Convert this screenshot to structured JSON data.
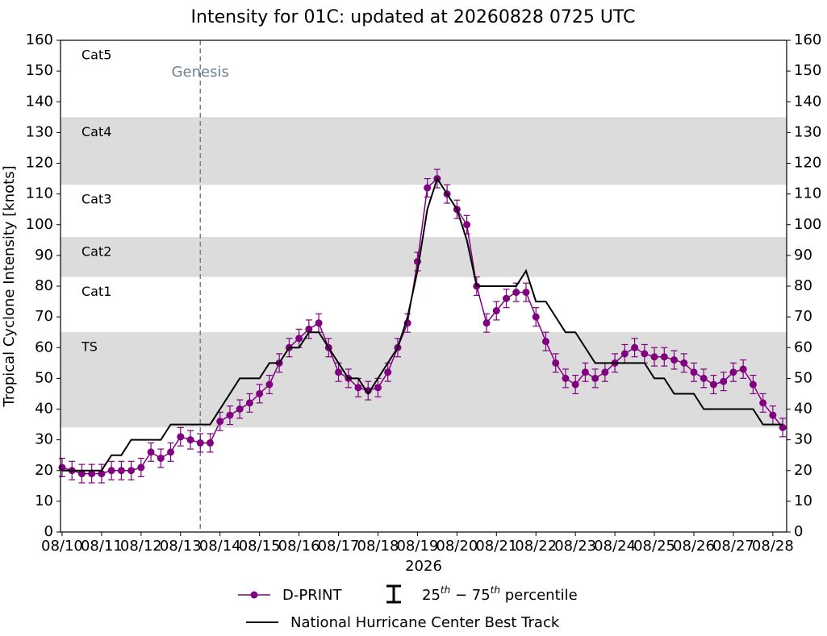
{
  "chart_data": {
    "type": "line",
    "title": "Intensity for 01C: updated at 20260828 0725 UTC",
    "ylabel": "Tropical Cyclone Intensity [knots]",
    "xlabel": "2026",
    "xlim": [
      -0.04,
      18.35
    ],
    "xticks": [
      {
        "value": 0,
        "label": "08/10"
      },
      {
        "value": 1,
        "label": "08/11"
      },
      {
        "value": 2,
        "label": "08/12"
      },
      {
        "value": 3,
        "label": "08/13"
      },
      {
        "value": 4,
        "label": "08/14"
      },
      {
        "value": 5,
        "label": "08/15"
      },
      {
        "value": 6,
        "label": "08/16"
      },
      {
        "value": 7,
        "label": "08/17"
      },
      {
        "value": 8,
        "label": "08/18"
      },
      {
        "value": 9,
        "label": "08/19"
      },
      {
        "value": 10,
        "label": "08/20"
      },
      {
        "value": 11,
        "label": "08/21"
      },
      {
        "value": 12,
        "label": "08/22"
      },
      {
        "value": 13,
        "label": "08/23"
      },
      {
        "value": 14,
        "label": "08/24"
      },
      {
        "value": 15,
        "label": "08/25"
      },
      {
        "value": 16,
        "label": "08/26"
      },
      {
        "value": 17,
        "label": "08/27"
      },
      {
        "value": 18,
        "label": "08/28"
      }
    ],
    "ylim": [
      0,
      160
    ],
    "yticks": [
      0,
      10,
      20,
      30,
      40,
      50,
      60,
      70,
      80,
      90,
      100,
      110,
      120,
      130,
      140,
      150,
      160
    ],
    "bands": [
      {
        "label": "TS",
        "range": [
          34,
          65
        ],
        "shaded": true
      },
      {
        "label": "Cat1",
        "range": [
          65,
          83
        ],
        "shaded": false
      },
      {
        "label": "Cat2",
        "range": [
          83,
          96
        ],
        "shaded": true
      },
      {
        "label": "Cat3",
        "range": [
          96,
          113
        ],
        "shaded": false
      },
      {
        "label": "Cat4",
        "range": [
          113,
          135
        ],
        "shaded": true
      },
      {
        "label": "Cat5",
        "range": [
          135,
          160
        ],
        "shaded": false
      }
    ],
    "annotations": [
      {
        "text": "Genesis",
        "x": 3.5,
        "color": "#708090"
      }
    ],
    "x": [
      0,
      0.25,
      0.5,
      0.75,
      1,
      1.25,
      1.5,
      1.75,
      2,
      2.25,
      2.5,
      2.75,
      3,
      3.25,
      3.5,
      3.75,
      4,
      4.25,
      4.5,
      4.75,
      5,
      5.25,
      5.5,
      5.75,
      6,
      6.25,
      6.5,
      6.75,
      7,
      7.25,
      7.5,
      7.75,
      8,
      8.25,
      8.5,
      8.75,
      9,
      9.25,
      9.5,
      9.75,
      10,
      10.25,
      10.5,
      10.75,
      11,
      11.25,
      11.5,
      11.75,
      12,
      12.25,
      12.5,
      12.75,
      13,
      13.25,
      13.5,
      13.75,
      14,
      14.25,
      14.5,
      14.75,
      15,
      15.25,
      15.5,
      15.75,
      16,
      16.25,
      16.5,
      16.75,
      17,
      17.25,
      17.5,
      17.75,
      18,
      18.25
    ],
    "series": [
      {
        "name": "D-PRINT",
        "color": "#800080",
        "error": 3,
        "values": [
          21,
          20,
          19,
          19,
          19,
          20,
          20,
          20,
          21,
          26,
          24,
          26,
          31,
          30,
          29,
          29,
          36,
          38,
          40,
          42,
          45,
          48,
          55,
          60,
          63,
          66,
          68,
          60,
          52,
          50,
          47,
          46,
          47,
          52,
          60,
          68,
          88,
          112,
          115,
          110,
          105,
          100,
          80,
          68,
          72,
          76,
          78,
          78,
          70,
          62,
          55,
          50,
          48,
          52,
          50,
          52,
          55,
          58,
          60,
          58,
          57,
          57,
          56,
          55,
          52,
          50,
          48,
          49,
          52,
          53,
          48,
          42,
          38,
          34
        ]
      },
      {
        "name": "National Hurricane Center Best Track",
        "color": "#000000",
        "values": [
          20,
          20,
          20,
          20,
          20,
          25,
          25,
          30,
          30,
          30,
          30,
          35,
          35,
          35,
          35,
          35,
          40,
          45,
          50,
          50,
          50,
          55,
          55,
          60,
          60,
          65,
          65,
          60,
          55,
          50,
          50,
          45,
          50,
          55,
          60,
          70,
          85,
          105,
          115,
          110,
          105,
          95,
          80,
          80,
          80,
          80,
          80,
          85,
          75,
          75,
          70,
          65,
          65,
          60,
          55,
          55,
          55,
          55,
          55,
          55,
          50,
          50,
          45,
          45,
          45,
          40,
          40,
          40,
          40,
          40,
          40,
          35,
          35,
          35
        ]
      }
    ],
    "percentile_label": [
      "25",
      "th",
      " − 75",
      "th",
      " percentile"
    ]
  }
}
